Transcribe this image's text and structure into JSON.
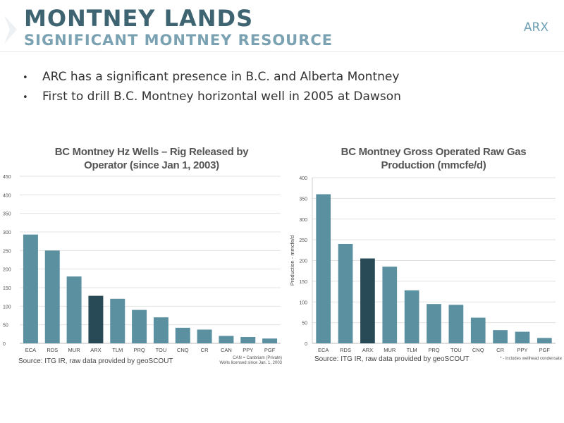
{
  "header": {
    "title": "MONTNEY LANDS",
    "subtitle": "SIGNIFICANT MONTNEY RESOURCE",
    "ticker": "ARX"
  },
  "bullets": [
    "ARC has a significant presence in B.C. and Alberta Montney",
    "First to drill B.C. Montney horizontal well in 2005 at Dawson"
  ],
  "colors": {
    "bar": "#5b90a1",
    "highlight": "#284a56",
    "title": "#3e6472",
    "subtitle": "#7aa2b2"
  },
  "chart_data": [
    {
      "type": "bar",
      "title": "BC Montney Hz Wells – Rig Released by Operator (since Jan 1, 2003)",
      "title_lines": [
        "BC Montney Hz Wells – Rig Released by",
        "Operator (since Jan 1, 2003)"
      ],
      "xlabel": "",
      "ylabel": "",
      "categories": [
        "ECA",
        "RDS",
        "MUR",
        "ARX",
        "TLM",
        "PRQ",
        "TOU",
        "CNQ",
        "CR",
        "CAN",
        "PPY",
        "PGF"
      ],
      "values": [
        293,
        250,
        180,
        128,
        120,
        90,
        70,
        42,
        37,
        20,
        17,
        13
      ],
      "highlight": "ARX",
      "ylim": [
        0,
        450
      ],
      "yticks": [
        0,
        50,
        100,
        150,
        200,
        250,
        300,
        350,
        400,
        450
      ],
      "grid": true,
      "source": "Source: ITG IR, raw data provided by geoSCOUT",
      "notes": [
        "CAN = Canbriam (Private)",
        "Wells licensed since Jan. 1, 2003"
      ]
    },
    {
      "type": "bar",
      "title": "BC Montney Gross Operated Raw Gas Production (mmcfe/d)",
      "title_lines": [
        "BC Montney Gross Operated Raw Gas",
        "Production (mmcfe/d)"
      ],
      "xlabel": "",
      "ylabel": "Production - mmcfe/d",
      "categories": [
        "ECA",
        "RDS",
        "ARX",
        "MUR",
        "TLM",
        "PRQ",
        "TOU",
        "CNQ",
        "CR",
        "PPY",
        "PGF"
      ],
      "values": [
        360,
        240,
        205,
        185,
        128,
        95,
        93,
        62,
        32,
        28,
        13
      ],
      "highlight": "ARX",
      "ylim": [
        0,
        400
      ],
      "yticks": [
        0,
        50,
        100,
        150,
        200,
        250,
        300,
        350,
        400
      ],
      "grid": true,
      "source": "Source: ITG IR, raw data provided by geoSCOUT",
      "notes": [
        "* - includes wellhead condensate"
      ]
    }
  ]
}
